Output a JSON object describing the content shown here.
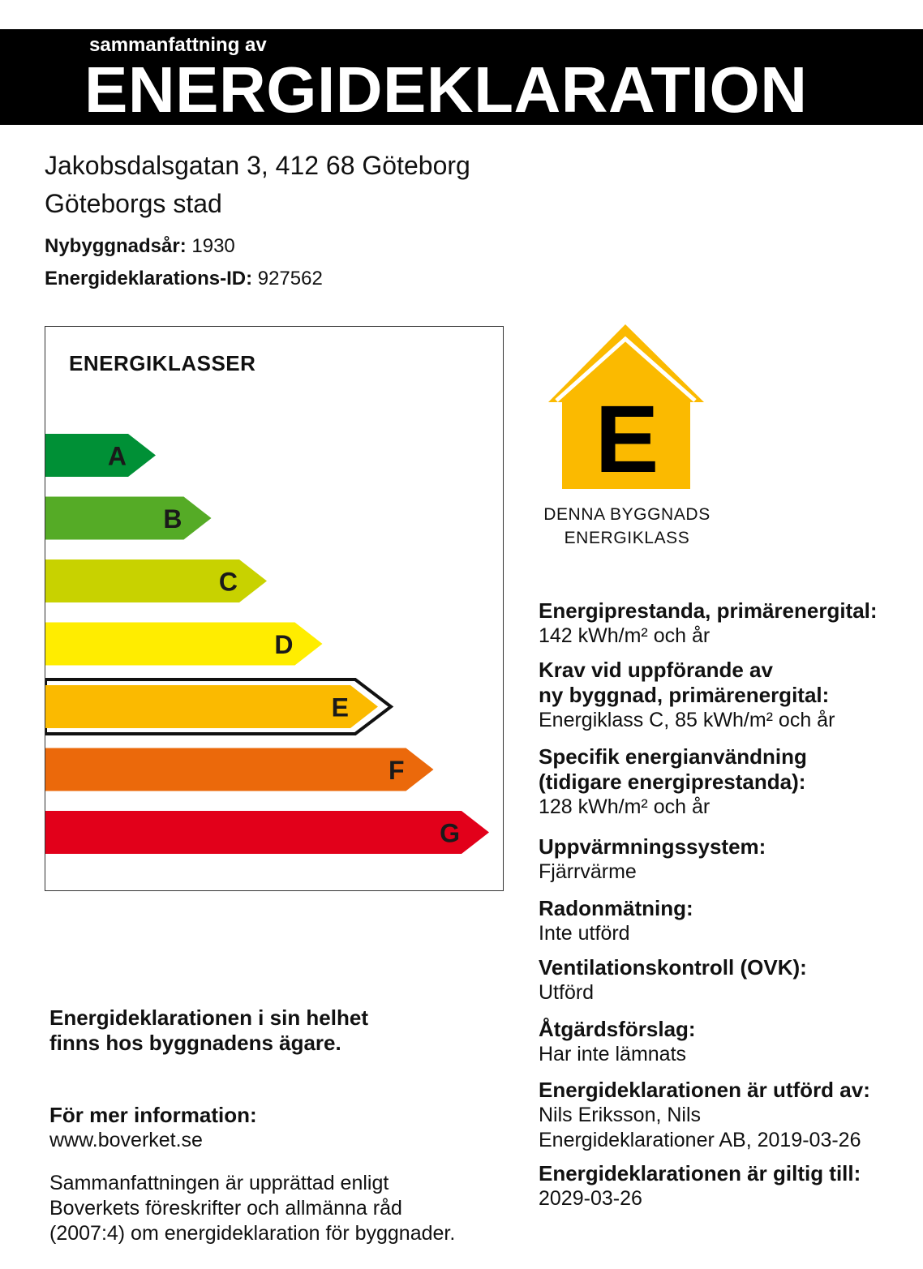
{
  "header": {
    "subtitle": "sammanfattning av",
    "title": "ENERGIDEKLARATION"
  },
  "address": {
    "street": "Jakobsdalsgatan 3, 412 68 Göteborg",
    "municipality": "Göteborgs stad"
  },
  "building": {
    "year_label": "Nybyggnadsår:",
    "year_value": "1930",
    "id_label": "Energideklarations-ID:",
    "id_value": "927562"
  },
  "energy_classes": {
    "title": "ENERGIKLASSER",
    "selected": "E",
    "classes": [
      {
        "letter": "A",
        "color": "#009036"
      },
      {
        "letter": "B",
        "color": "#55ab26"
      },
      {
        "letter": "C",
        "color": "#c8d200"
      },
      {
        "letter": "D",
        "color": "#ffed00"
      },
      {
        "letter": "E",
        "color": "#fbba00"
      },
      {
        "letter": "F",
        "color": "#eb690b"
      },
      {
        "letter": "G",
        "color": "#e2001a"
      }
    ]
  },
  "badge": {
    "letter": "E",
    "color": "#fbba00",
    "caption_line1": "DENNA BYGGNADS",
    "caption_line2": "ENERGIKLASS",
    "icon": "house-icon"
  },
  "info": {
    "primary_label": "Energiprestanda, primärenergital:",
    "primary_value": "142 kWh/m² och år",
    "requirement_label_1": "Krav vid uppförande av",
    "requirement_label_2": "ny byggnad, primärenergital:",
    "requirement_value": "Energiklass C, 85 kWh/m² och år",
    "specific_label_1": "Specifik energianvändning",
    "specific_label_2": "(tidigare energiprestanda):",
    "specific_value": "128 kWh/m² och år",
    "heating_label": "Uppvärmningssystem:",
    "heating_value": "Fjärrvärme",
    "radon_label": "Radonmätning:",
    "radon_value": "Inte utförd",
    "ventilation_label": "Ventilationskontroll (OVK):",
    "ventilation_value": "Utförd",
    "measures_label": "Åtgärdsförslag:",
    "measures_value": "Har inte lämnats",
    "performed_label": "Energideklarationen är utförd av:",
    "performed_value_1": "Nils Eriksson, Nils",
    "performed_value_2": "Energideklarationer AB, 2019-03-26",
    "valid_label": "Energideklarationen är giltig till:",
    "valid_value": "2029-03-26"
  },
  "footer": {
    "owner_line1": "Energideklarationen i sin helhet",
    "owner_line2": "finns hos byggnadens ägare.",
    "more_info_label": "För mer information:",
    "more_info_link": "www.boverket.se",
    "note_line1": "Sammanfattningen är upprättad enligt",
    "note_line2": "Boverkets föreskrifter och allmänna råd",
    "note_line3": "(2007:4) om energideklaration för byggnader."
  }
}
